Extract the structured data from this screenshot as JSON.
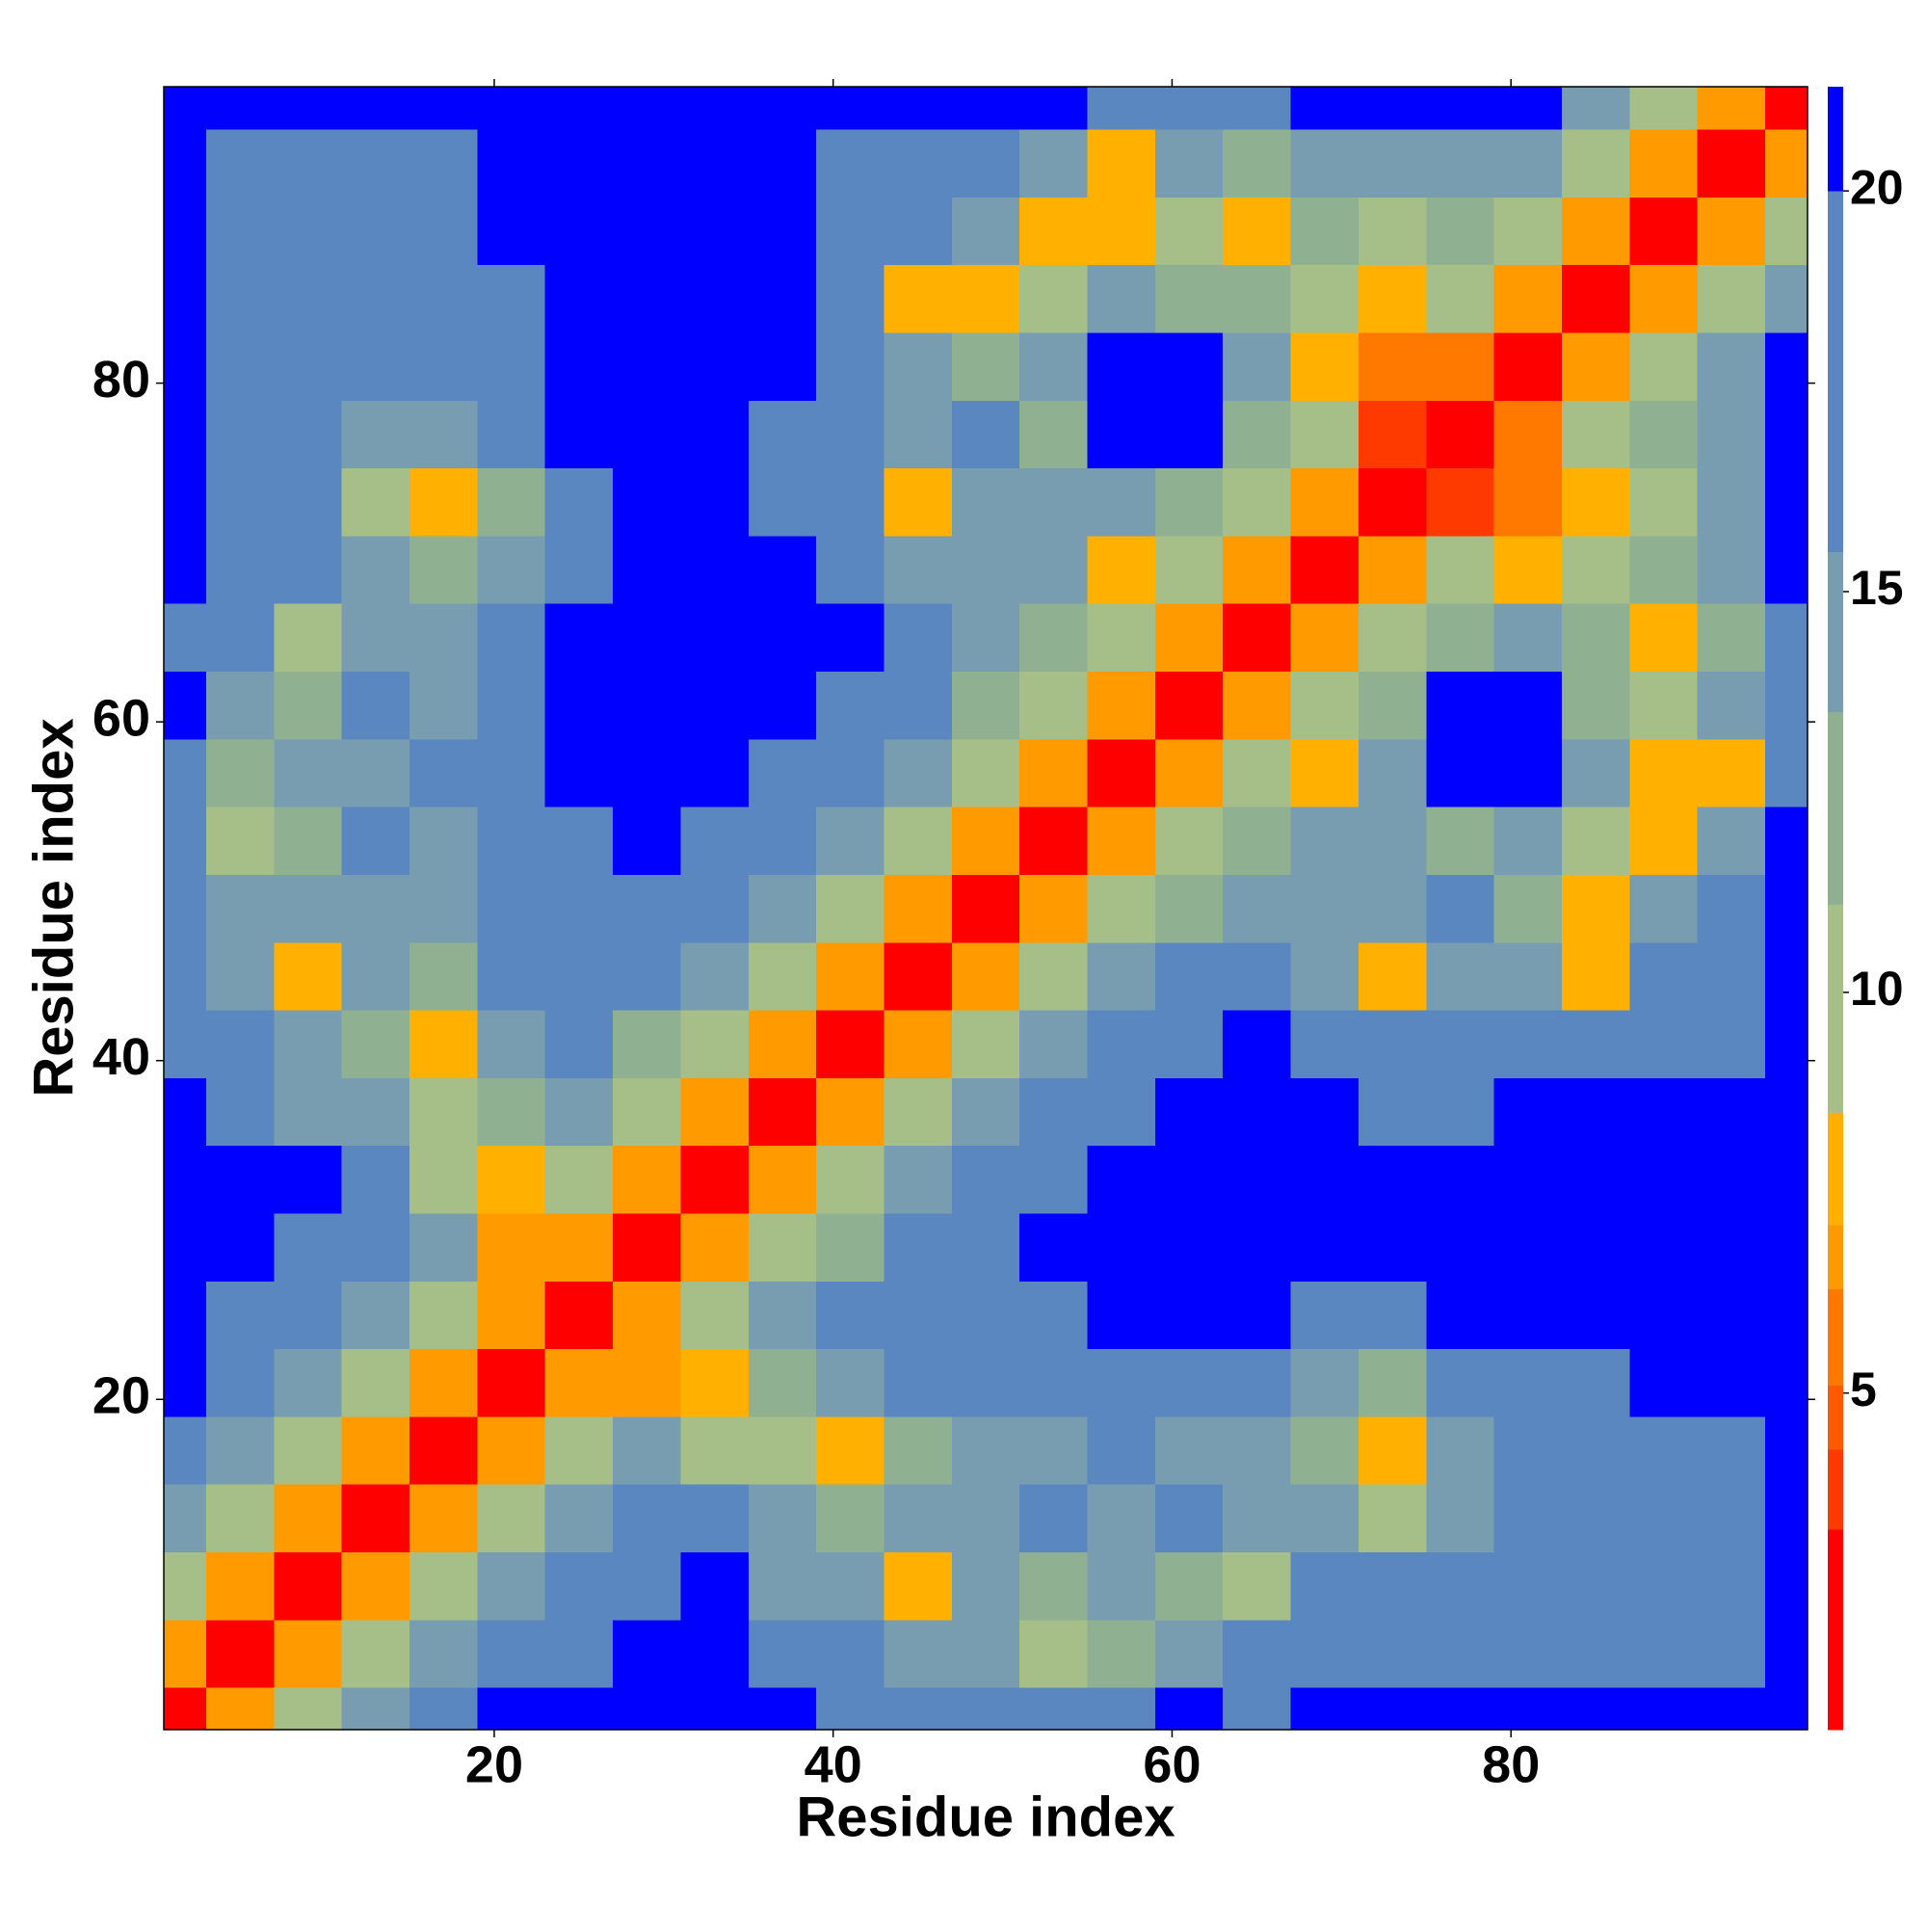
{
  "chart_data": {
    "type": "heatmap",
    "xlabel": "Residue index",
    "ylabel": "Residue index",
    "x": [
      1,
      5,
      9,
      13,
      17,
      21,
      25,
      29,
      33,
      37,
      41,
      45,
      49,
      53,
      57,
      61,
      65,
      69,
      73,
      77,
      81,
      85,
      89,
      93,
      97
    ],
    "y": [
      1,
      5,
      9,
      13,
      17,
      21,
      25,
      29,
      33,
      37,
      41,
      45,
      49,
      53,
      57,
      61,
      65,
      69,
      73,
      77,
      81,
      85,
      89,
      93,
      97
    ],
    "xlim": [
      0.5,
      97.5
    ],
    "ylim": [
      0.5,
      97.5
    ],
    "xticks": [
      20,
      40,
      60,
      80
    ],
    "yticks": [
      20,
      40,
      60,
      80
    ],
    "zlim": [
      0.8,
      21.3
    ],
    "zticks": [
      5,
      10,
      15,
      20
    ],
    "colorscale": [
      {
        "max": 3.3,
        "color": "#ff0000"
      },
      {
        "max": 4.3,
        "color": "#ff3a00"
      },
      {
        "max": 5.1,
        "color": "#ff5a00"
      },
      {
        "max": 6.3,
        "color": "#ff7800"
      },
      {
        "max": 7.1,
        "color": "#ff9a00"
      },
      {
        "max": 8.5,
        "color": "#ffb000"
      },
      {
        "max": 11.1,
        "color": "#a6bf88"
      },
      {
        "max": 13.5,
        "color": "#8fb192"
      },
      {
        "max": 15.5,
        "color": "#789db0"
      },
      {
        "max": 20,
        "color": "#5a87c0"
      },
      {
        "max": 21.3,
        "color": "#0000ff"
      }
    ],
    "z": [
      [
        2,
        7,
        11,
        14,
        17,
        22,
        22,
        22,
        22,
        22,
        17,
        17,
        16,
        17,
        17,
        22,
        17,
        22,
        22,
        22,
        22,
        22,
        22,
        22,
        22
      ],
      [
        7,
        2,
        7,
        11,
        14,
        17,
        19,
        22,
        22,
        17,
        16,
        15,
        14,
        10,
        12,
        14,
        16,
        17,
        16,
        17,
        17,
        16,
        17,
        17,
        22
      ],
      [
        11,
        7,
        2,
        7,
        11,
        14,
        17,
        19,
        22,
        14,
        15,
        8,
        15,
        12,
        14,
        12,
        11,
        16,
        16,
        17,
        17,
        17,
        17,
        17,
        22
      ],
      [
        14,
        11,
        7,
        2,
        7,
        11,
        14,
        17,
        18,
        15,
        12,
        14,
        14,
        16,
        15,
        16,
        15,
        14,
        11,
        14,
        16,
        17,
        16,
        17,
        22
      ],
      [
        17,
        14,
        11,
        7,
        2,
        7,
        11,
        14,
        11,
        9,
        8,
        12,
        14,
        15,
        17,
        15,
        14,
        12,
        8,
        15,
        16,
        16,
        17,
        17,
        22
      ],
      [
        22,
        17,
        14,
        11,
        7,
        2,
        7,
        7,
        8,
        12,
        14,
        16,
        16,
        17,
        17,
        17,
        16,
        15,
        12,
        16,
        17,
        17,
        22,
        22,
        22
      ],
      [
        22,
        19,
        17,
        14,
        11,
        7,
        2,
        7,
        10,
        14,
        16,
        17,
        17,
        17,
        22,
        22,
        22,
        17,
        17,
        22,
        22,
        22,
        22,
        22,
        22
      ],
      [
        22,
        22,
        19,
        17,
        14,
        7,
        7,
        2,
        7,
        11,
        13,
        16,
        18,
        22,
        22,
        22,
        22,
        22,
        22,
        22,
        22,
        22,
        22,
        22,
        22
      ],
      [
        22,
        22,
        22,
        18,
        11,
        8,
        10,
        7,
        2,
        7,
        11,
        14,
        17,
        19,
        22,
        22,
        22,
        22,
        22,
        22,
        22,
        22,
        22,
        22,
        22
      ],
      [
        22,
        17,
        14,
        15,
        9,
        12,
        14,
        11,
        7,
        2,
        7,
        11,
        14,
        17,
        19,
        22,
        22,
        22,
        17,
        17,
        22,
        22,
        22,
        22,
        22
      ],
      [
        17,
        16,
        15,
        12,
        8,
        14,
        16,
        13,
        11,
        7,
        2,
        7,
        11,
        14,
        16,
        19,
        22,
        17,
        16,
        17,
        16,
        17,
        16,
        17,
        22
      ],
      [
        17,
        15,
        8,
        14,
        12,
        16,
        17,
        16,
        14,
        11,
        7,
        2,
        7,
        11,
        14,
        16,
        17,
        15,
        8,
        14,
        14,
        8,
        16,
        17,
        22
      ],
      [
        16,
        14,
        15,
        14,
        14,
        16,
        17,
        18,
        17,
        14,
        11,
        7,
        2,
        7,
        10,
        13,
        15,
        14,
        14,
        16,
        12,
        8,
        14,
        16,
        22
      ],
      [
        17,
        10,
        12,
        16,
        15,
        17,
        17,
        22,
        19,
        17,
        14,
        11,
        7,
        2,
        7,
        10,
        13,
        15,
        14,
        12,
        15,
        11,
        8,
        14,
        22
      ],
      [
        17,
        12,
        14,
        15,
        17,
        17,
        22,
        22,
        22,
        19,
        16,
        14,
        10,
        7,
        2,
        7,
        9,
        8,
        14,
        22,
        22,
        14,
        8,
        8,
        17
      ],
      [
        22,
        14,
        12,
        16,
        15,
        17,
        22,
        22,
        22,
        22,
        19,
        16,
        13,
        10,
        7,
        2,
        7,
        9,
        13,
        22,
        22,
        12,
        11,
        14,
        17
      ],
      [
        17,
        16,
        11,
        15,
        14,
        16,
        22,
        22,
        22,
        22,
        22,
        17,
        15,
        13,
        9,
        7,
        2,
        7,
        10,
        13,
        14,
        12,
        8,
        12,
        17
      ],
      [
        22,
        17,
        16,
        14,
        12,
        15,
        17,
        22,
        22,
        22,
        17,
        15,
        14,
        15,
        8,
        9,
        7,
        2,
        7,
        9,
        8,
        9,
        12,
        14,
        22
      ],
      [
        22,
        16,
        16,
        11,
        8,
        12,
        17,
        22,
        22,
        17,
        16,
        8,
        14,
        14,
        14,
        13,
        10,
        7,
        2,
        4,
        6,
        8,
        11,
        14,
        22
      ],
      [
        22,
        17,
        17,
        14,
        15,
        16,
        22,
        22,
        22,
        17,
        17,
        14,
        16,
        12,
        22,
        22,
        13,
        9,
        4,
        2,
        6,
        9,
        12,
        15,
        22
      ],
      [
        22,
        17,
        17,
        16,
        16,
        17,
        22,
        22,
        22,
        22,
        16,
        14,
        12,
        15,
        22,
        22,
        14,
        8,
        6,
        6,
        2,
        7,
        11,
        14,
        22
      ],
      [
        22,
        16,
        17,
        17,
        16,
        17,
        22,
        22,
        22,
        22,
        17,
        8,
        8,
        11,
        14,
        12,
        12,
        9,
        8,
        9,
        7,
        2,
        7,
        11,
        14
      ],
      [
        22,
        17,
        17,
        16,
        17,
        22,
        22,
        22,
        22,
        22,
        16,
        16,
        14,
        8,
        8,
        11,
        8,
        12,
        11,
        12,
        11,
        7,
        2,
        7,
        11
      ],
      [
        22,
        17,
        17,
        17,
        17,
        22,
        22,
        22,
        22,
        22,
        17,
        17,
        16,
        14,
        8,
        14,
        12,
        14,
        14,
        15,
        14,
        11,
        7,
        2,
        7
      ],
      [
        22,
        22,
        22,
        22,
        22,
        22,
        22,
        22,
        22,
        22,
        22,
        22,
        22,
        22,
        17,
        17,
        17,
        22,
        22,
        22,
        22,
        14,
        11,
        7,
        2
      ]
    ]
  }
}
